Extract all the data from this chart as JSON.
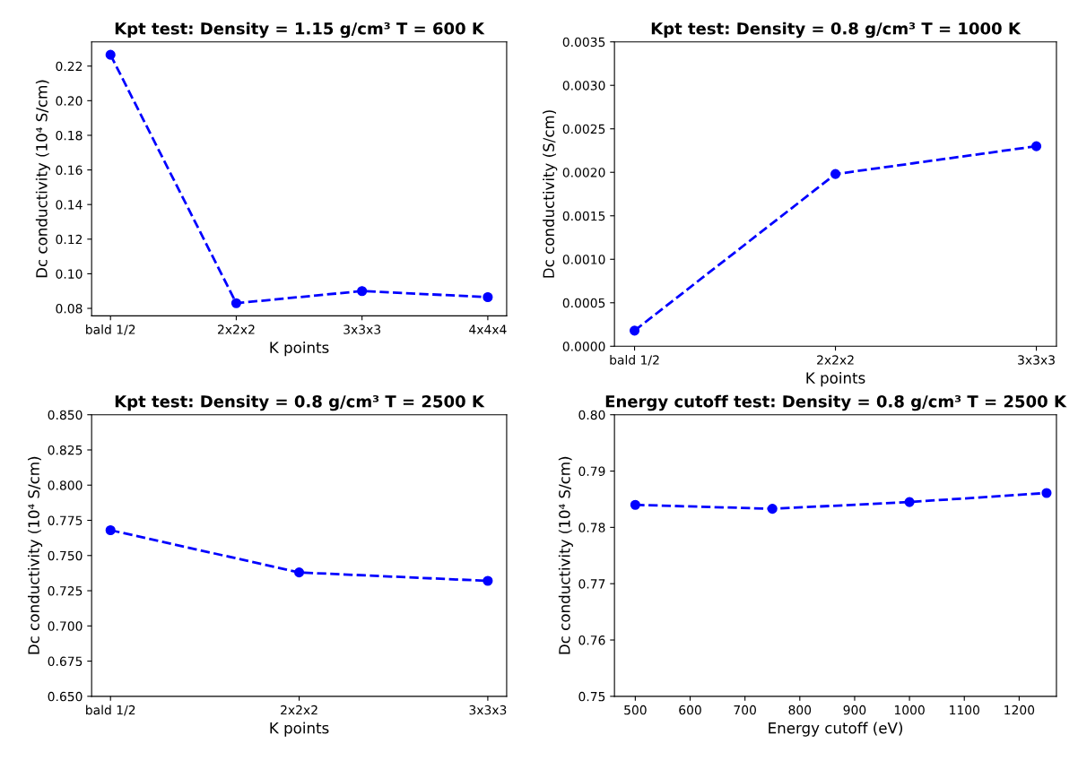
{
  "chart_data": [
    {
      "type": "line",
      "title": "Kpt test: Density = 1.15 g/cm³ T = 600 K",
      "xlabel": "K points",
      "ylabel": "Dc conductivity (10⁴ S/cm)",
      "categories": [
        "bald 1/2",
        "2x2x2",
        "3x3x3",
        "4x4x4"
      ],
      "series": [
        {
          "color": "#0000ff",
          "values": [
            0.2265,
            0.083,
            0.09,
            0.0865
          ]
        }
      ],
      "ylim": [
        0.0757,
        0.234
      ],
      "yticks": [
        {
          "value": 0.08,
          "label": "0.08"
        },
        {
          "value": 0.1,
          "label": "0.10"
        },
        {
          "value": 0.12,
          "label": "0.12"
        },
        {
          "value": 0.14,
          "label": "0.14"
        },
        {
          "value": 0.16,
          "label": "0.16"
        },
        {
          "value": 0.18,
          "label": "0.18"
        },
        {
          "value": 0.2,
          "label": "0.20"
        },
        {
          "value": 0.22,
          "label": "0.22"
        }
      ],
      "marker": "circle",
      "line_style": "dashed",
      "grid": false,
      "legend": false
    },
    {
      "type": "line",
      "title": "Kpt test: Density = 0.8 g/cm³ T = 1000 K",
      "xlabel": "K points",
      "ylabel": "Dc conductivity (S/cm)",
      "categories": [
        "bald 1/2",
        "2x2x2",
        "3x3x3"
      ],
      "series": [
        {
          "color": "#0000ff",
          "values": [
            0.00018,
            0.00198,
            0.0023
          ]
        }
      ],
      "ylim": [
        0,
        0.0035
      ],
      "yticks": [
        {
          "value": 0,
          "label": "0.0000"
        },
        {
          "value": 0.0005,
          "label": "0.0005"
        },
        {
          "value": 0.001,
          "label": "0.0010"
        },
        {
          "value": 0.0015,
          "label": "0.0015"
        },
        {
          "value": 0.002,
          "label": "0.0020"
        },
        {
          "value": 0.0025,
          "label": "0.0025"
        },
        {
          "value": 0.003,
          "label": "0.0030"
        },
        {
          "value": 0.0035,
          "label": "0.0035"
        }
      ],
      "marker": "circle",
      "line_style": "dashed",
      "grid": false,
      "legend": false
    },
    {
      "type": "line",
      "title": "Kpt test: Density = 0.8 g/cm³ T = 2500 K",
      "xlabel": "K points",
      "ylabel": "Dc conductivity (10⁴ S/cm)",
      "categories": [
        "bald 1/2",
        "2x2x2",
        "3x3x3"
      ],
      "series": [
        {
          "color": "#0000ff",
          "values": [
            0.768,
            0.738,
            0.732
          ]
        }
      ],
      "ylim": [
        0.65,
        0.85
      ],
      "yticks": [
        {
          "value": 0.65,
          "label": "0.650"
        },
        {
          "value": 0.675,
          "label": "0.675"
        },
        {
          "value": 0.7,
          "label": "0.700"
        },
        {
          "value": 0.725,
          "label": "0.725"
        },
        {
          "value": 0.75,
          "label": "0.750"
        },
        {
          "value": 0.775,
          "label": "0.775"
        },
        {
          "value": 0.8,
          "label": "0.800"
        },
        {
          "value": 0.825,
          "label": "0.825"
        },
        {
          "value": 0.85,
          "label": "0.850"
        }
      ],
      "marker": "circle",
      "line_style": "dashed",
      "grid": false,
      "legend": false
    },
    {
      "type": "line",
      "title": "Energy cutoff test: Density = 0.8 g/cm³ T = 2500 K",
      "xlabel": "Energy cutoff (eV)",
      "ylabel": "Dc conductivity (10⁴ S/cm)",
      "x": [
        500,
        750,
        1000,
        1250
      ],
      "series": [
        {
          "color": "#0000ff",
          "values": [
            0.784,
            0.7833,
            0.7845,
            0.7861
          ]
        }
      ],
      "xlim": [
        462,
        1268
      ],
      "xticks": [
        500,
        600,
        700,
        800,
        900,
        1000,
        1100,
        1200
      ],
      "ylim": [
        0.75,
        0.8
      ],
      "yticks": [
        {
          "value": 0.75,
          "label": "0.75"
        },
        {
          "value": 0.76,
          "label": "0.76"
        },
        {
          "value": 0.77,
          "label": "0.77"
        },
        {
          "value": 0.78,
          "label": "0.78"
        },
        {
          "value": 0.79,
          "label": "0.79"
        },
        {
          "value": 0.8,
          "label": "0.80"
        }
      ],
      "marker": "circle",
      "line_style": "dashed",
      "grid": false,
      "legend": false
    }
  ]
}
